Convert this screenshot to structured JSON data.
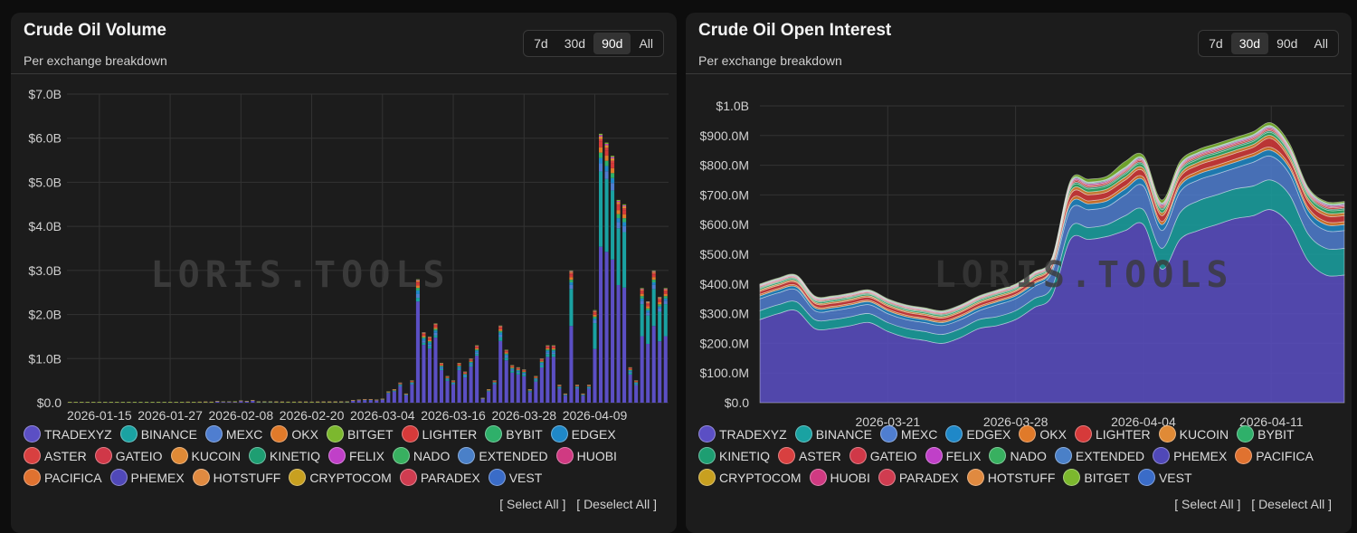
{
  "left": {
    "title": "Crude Oil Volume",
    "subtitle": "Per exchange breakdown",
    "ranges": [
      "7d",
      "30d",
      "90d",
      "All"
    ],
    "active_range": "90d",
    "watermark": "LORIS.TOOLS",
    "legend": [
      "TRADEXYZ",
      "BINANCE",
      "MEXC",
      "OKX",
      "BITGET",
      "LIGHTER",
      "BYBIT",
      "EDGEX",
      "ASTER",
      "GATEIO",
      "KUCOIN",
      "KINETIQ",
      "FELIX",
      "NADO",
      "EXTENDED",
      "HUOBI",
      "PACIFICA",
      "PHEMEX",
      "HOTSTUFF",
      "CRYPTOCOM",
      "PARADEX",
      "VEST"
    ],
    "select_all": "[ Select All ]",
    "deselect_all": "[ Deselect All ]"
  },
  "right": {
    "title": "Crude Oil Open Interest",
    "subtitle": "Per exchange breakdown",
    "ranges": [
      "7d",
      "30d",
      "90d",
      "All"
    ],
    "active_range": "30d",
    "watermark": "LORIS.TOOLS",
    "legend": [
      "TRADEXYZ",
      "BINANCE",
      "MEXC",
      "EDGEX",
      "OKX",
      "LIGHTER",
      "KUCOIN",
      "BYBIT",
      "KINETIQ",
      "ASTER",
      "GATEIO",
      "FELIX",
      "NADO",
      "EXTENDED",
      "PHEMEX",
      "PACIFICA",
      "CRYPTOCOM",
      "HUOBI",
      "PARADEX",
      "HOTSTUFF",
      "BITGET",
      "VEST"
    ],
    "select_all": "[ Select All ]",
    "deselect_all": "[ Deselect All ]"
  },
  "colors": {
    "TRADEXYZ": "#5b4fc4",
    "BINANCE": "#1aa2a2",
    "MEXC": "#4f7ed0",
    "OKX": "#e07a2a",
    "BITGET": "#7cb82e",
    "LIGHTER": "#d63a3a",
    "BYBIT": "#2fb06a",
    "EDGEX": "#1f88c8",
    "ASTER": "#d84040",
    "GATEIO": "#d03848",
    "KUCOIN": "#e08a36",
    "KINETIQ": "#1e9e72",
    "FELIX": "#c040c8",
    "NADO": "#38b060",
    "EXTENDED": "#4a80c8",
    "HUOBI": "#d03a82",
    "PACIFICA": "#e07230",
    "PHEMEX": "#5048b8",
    "HOTSTUFF": "#e08a40",
    "CRYPTOCOM": "#c8a020",
    "PARADEX": "#d03c50",
    "VEST": "#3a6cc8"
  },
  "chart_data": [
    {
      "type": "bar",
      "title": "Crude Oil Volume",
      "ylim": [
        0,
        7000000000
      ],
      "y_ticks": [
        "$0.0",
        "$1.0B",
        "$2.0B",
        "$3.0B",
        "$4.0B",
        "$5.0B",
        "$6.0B",
        "$7.0B"
      ],
      "x_ticks": [
        "2026-01-15",
        "2026-01-27",
        "2026-02-08",
        "2026-02-20",
        "2026-03-04",
        "2026-03-16",
        "2026-03-28",
        "2026-04-09"
      ],
      "x_tick_days": [
        5,
        17,
        29,
        41,
        53,
        65,
        77,
        89
      ],
      "grid": true,
      "totals": [
        0.001,
        0.002,
        0.003,
        0.002,
        0.002,
        0.003,
        0.002,
        0.002,
        0.003,
        0.002,
        0.002,
        0.003,
        0.002,
        0.002,
        0.003,
        0.002,
        0.003,
        0.004,
        0.003,
        0.004,
        0.005,
        0.004,
        0.005,
        0.006,
        0.005,
        0.03,
        0.02,
        0.02,
        0.015,
        0.04,
        0.03,
        0.05,
        0.01,
        0.01,
        0.01,
        0.008,
        0.006,
        0.005,
        0.005,
        0.006,
        0.006,
        0.005,
        0.006,
        0.007,
        0.007,
        0.008,
        0.009,
        0.01,
        0.05,
        0.06,
        0.07,
        0.07,
        0.06,
        0.08,
        0.25,
        0.3,
        0.45,
        0.2,
        0.5,
        2.8,
        1.6,
        1.5,
        1.8,
        0.9,
        0.6,
        0.5,
        0.9,
        0.7,
        1.0,
        1.3,
        0.1,
        0.3,
        0.5,
        1.75,
        1.2,
        0.85,
        0.8,
        0.75,
        0.3,
        0.6,
        1.0,
        1.3,
        1.3,
        0.4,
        0.2,
        3.0,
        0.4,
        0.2,
        0.4,
        2.1,
        6.1,
        5.9,
        5.6,
        4.6,
        4.5,
        0.8,
        0.5,
        2.6,
        2.3,
        3.0,
        2.4,
        2.6
      ],
      "series_breakdown_note": "",
      "series": [
        "TRADEXYZ",
        "BINANCE",
        "MEXC",
        "OKX",
        "BITGET",
        "LIGHTER",
        "BYBIT",
        "EDGEX",
        "ASTER",
        "GATEIO",
        "KUCOIN",
        "KINETIQ",
        "FELIX",
        "NADO",
        "EXTENDED",
        "HUOBI",
        "PACIFICA",
        "PHEMEX",
        "HOTSTUFF",
        "CRYPTOCOM",
        "PARADEX",
        "VEST"
      ]
    },
    {
      "type": "area",
      "title": "Crude Oil Open Interest",
      "ylim": [
        0,
        1000000000
      ],
      "y_ticks": [
        "$0.0",
        "$100.0M",
        "$200.0M",
        "$300.0M",
        "$400.0M",
        "$500.0M",
        "$600.0M",
        "$700.0M",
        "$800.0M",
        "$900.0M",
        "$1.0B"
      ],
      "x_ticks": [
        "2026-03-21",
        "2026-03-28",
        "2026-04-04",
        "2026-04-11"
      ],
      "x_tick_days": [
        7,
        14,
        21,
        28
      ],
      "grid": true,
      "x_days": [
        0,
        1,
        2,
        3,
        4,
        5,
        6,
        7,
        8,
        9,
        10,
        11,
        12,
        13,
        14,
        15,
        16,
        17,
        18,
        19,
        20,
        21,
        22,
        23,
        24,
        25,
        26,
        27,
        28,
        29,
        30,
        31,
        32
      ],
      "series": [
        {
          "name": "TRADEXYZ",
          "values": [
            0.28,
            0.3,
            0.31,
            0.25,
            0.25,
            0.26,
            0.27,
            0.24,
            0.22,
            0.21,
            0.2,
            0.22,
            0.25,
            0.26,
            0.28,
            0.32,
            0.36,
            0.55,
            0.55,
            0.56,
            0.58,
            0.6,
            0.45,
            0.55,
            0.58,
            0.6,
            0.62,
            0.63,
            0.65,
            0.6,
            0.48,
            0.43,
            0.43
          ]
        },
        {
          "name": "BINANCE",
          "values": [
            0.03,
            0.03,
            0.03,
            0.03,
            0.03,
            0.03,
            0.03,
            0.03,
            0.03,
            0.03,
            0.03,
            0.03,
            0.03,
            0.03,
            0.03,
            0.03,
            0.03,
            0.04,
            0.04,
            0.04,
            0.05,
            0.05,
            0.07,
            0.09,
            0.1,
            0.1,
            0.1,
            0.1,
            0.1,
            0.1,
            0.09,
            0.09,
            0.09
          ]
        },
        {
          "name": "MEXC",
          "values": [
            0.04,
            0.04,
            0.04,
            0.03,
            0.03,
            0.03,
            0.03,
            0.03,
            0.03,
            0.03,
            0.03,
            0.03,
            0.03,
            0.04,
            0.04,
            0.04,
            0.05,
            0.06,
            0.06,
            0.06,
            0.07,
            0.08,
            0.06,
            0.07,
            0.07,
            0.07,
            0.07,
            0.08,
            0.08,
            0.07,
            0.06,
            0.06,
            0.06
          ]
        },
        {
          "name": "EDGEX",
          "values": [
            0.01,
            0.01,
            0.01,
            0.01,
            0.01,
            0.01,
            0.01,
            0.01,
            0.01,
            0.01,
            0.01,
            0.01,
            0.01,
            0.01,
            0.01,
            0.01,
            0.01,
            0.02,
            0.02,
            0.02,
            0.02,
            0.02,
            0.02,
            0.02,
            0.02,
            0.02,
            0.02,
            0.02,
            0.02,
            0.02,
            0.02,
            0.02,
            0.02
          ]
        },
        {
          "name": "OKX",
          "values": [
            0.005,
            0.005,
            0.005,
            0.005,
            0.005,
            0.005,
            0.005,
            0.005,
            0.005,
            0.005,
            0.005,
            0.005,
            0.005,
            0.005,
            0.005,
            0.005,
            0.005,
            0.01,
            0.01,
            0.01,
            0.01,
            0.01,
            0.01,
            0.01,
            0.01,
            0.01,
            0.01,
            0.01,
            0.01,
            0.01,
            0.01,
            0.01,
            0.01
          ]
        },
        {
          "name": "LIGHTER",
          "values": [
            0.01,
            0.01,
            0.01,
            0.01,
            0.01,
            0.01,
            0.01,
            0.01,
            0.01,
            0.01,
            0.01,
            0.01,
            0.01,
            0.01,
            0.01,
            0.01,
            0.01,
            0.02,
            0.02,
            0.02,
            0.02,
            0.02,
            0.02,
            0.02,
            0.02,
            0.02,
            0.02,
            0.02,
            0.03,
            0.02,
            0.02,
            0.02,
            0.02
          ]
        },
        {
          "name": "KUCOIN",
          "values": [
            0.005,
            0.005,
            0.005,
            0.005,
            0.005,
            0.005,
            0.005,
            0.005,
            0.005,
            0.005,
            0.005,
            0.005,
            0.005,
            0.005,
            0.005,
            0.005,
            0.005,
            0.01,
            0.01,
            0.01,
            0.01,
            0.01,
            0.01,
            0.01,
            0.01,
            0.01,
            0.01,
            0.01,
            0.01,
            0.01,
            0.01,
            0.01,
            0.01
          ]
        },
        {
          "name": "BYBIT",
          "values": [
            0.005,
            0.005,
            0.005,
            0.005,
            0.005,
            0.005,
            0.005,
            0.005,
            0.005,
            0.005,
            0.005,
            0.005,
            0.005,
            0.005,
            0.005,
            0.005,
            0.005,
            0.01,
            0.01,
            0.01,
            0.01,
            0.01,
            0.01,
            0.01,
            0.01,
            0.01,
            0.01,
            0.01,
            0.01,
            0.01,
            0.01,
            0.01,
            0.01
          ]
        },
        {
          "name": "KINETIQ",
          "values": [
            0.003,
            0.003,
            0.003,
            0.003,
            0.003,
            0.003,
            0.003,
            0.003,
            0.003,
            0.003,
            0.003,
            0.003,
            0.003,
            0.003,
            0.003,
            0.003,
            0.003,
            0.005,
            0.005,
            0.005,
            0.005,
            0.005,
            0.005,
            0.005,
            0.005,
            0.005,
            0.005,
            0.005,
            0.005,
            0.005,
            0.005,
            0.005,
            0.005
          ]
        },
        {
          "name": "ASTER",
          "values": [
            0.003,
            0.003,
            0.003,
            0.003,
            0.003,
            0.003,
            0.003,
            0.003,
            0.003,
            0.003,
            0.003,
            0.003,
            0.003,
            0.003,
            0.003,
            0.003,
            0.003,
            0.005,
            0.005,
            0.005,
            0.005,
            0.005,
            0.005,
            0.005,
            0.005,
            0.005,
            0.005,
            0.005,
            0.005,
            0.005,
            0.005,
            0.005,
            0.005
          ]
        },
        {
          "name": "GATEIO",
          "values": [
            0.002,
            0.002,
            0.002,
            0.002,
            0.002,
            0.002,
            0.002,
            0.002,
            0.002,
            0.002,
            0.002,
            0.002,
            0.002,
            0.002,
            0.002,
            0.002,
            0.002,
            0.004,
            0.004,
            0.004,
            0.004,
            0.004,
            0.004,
            0.004,
            0.004,
            0.004,
            0.004,
            0.004,
            0.004,
            0.004,
            0.004,
            0.004,
            0.004
          ]
        },
        {
          "name": "FELIX",
          "values": [
            0.002,
            0.002,
            0.002,
            0.002,
            0.002,
            0.002,
            0.002,
            0.002,
            0.002,
            0.002,
            0.002,
            0.002,
            0.002,
            0.002,
            0.002,
            0.002,
            0.002,
            0.004,
            0.004,
            0.004,
            0.004,
            0.004,
            0.004,
            0.004,
            0.004,
            0.004,
            0.004,
            0.004,
            0.004,
            0.004,
            0.004,
            0.004,
            0.004
          ]
        },
        {
          "name": "NADO",
          "values": [
            0.002,
            0.002,
            0.002,
            0.002,
            0.002,
            0.002,
            0.002,
            0.002,
            0.002,
            0.002,
            0.002,
            0.002,
            0.002,
            0.002,
            0.002,
            0.002,
            0.002,
            0.003,
            0.003,
            0.003,
            0.003,
            0.003,
            0.003,
            0.003,
            0.003,
            0.003,
            0.003,
            0.003,
            0.003,
            0.003,
            0.003,
            0.003,
            0.003
          ]
        },
        {
          "name": "EXTENDED",
          "values": [
            0.001,
            0.001,
            0.001,
            0.001,
            0.001,
            0.001,
            0.001,
            0.001,
            0.001,
            0.001,
            0.001,
            0.001,
            0.001,
            0.001,
            0.001,
            0.001,
            0.001,
            0.002,
            0.002,
            0.002,
            0.002,
            0.002,
            0.002,
            0.002,
            0.002,
            0.002,
            0.002,
            0.002,
            0.002,
            0.002,
            0.002,
            0.002,
            0.002
          ]
        },
        {
          "name": "BITGET",
          "values": [
            0.002,
            0.002,
            0.002,
            0.002,
            0.002,
            0.002,
            0.002,
            0.002,
            0.002,
            0.002,
            0.002,
            0.002,
            0.002,
            0.002,
            0.002,
            0.002,
            0.002,
            0.005,
            0.01,
            0.01,
            0.02,
            0.01,
            0.01,
            0.01,
            0.01,
            0.01,
            0.01,
            0.01,
            0.01,
            0.01,
            0.005,
            0.005,
            0.005
          ]
        }
      ]
    }
  ]
}
